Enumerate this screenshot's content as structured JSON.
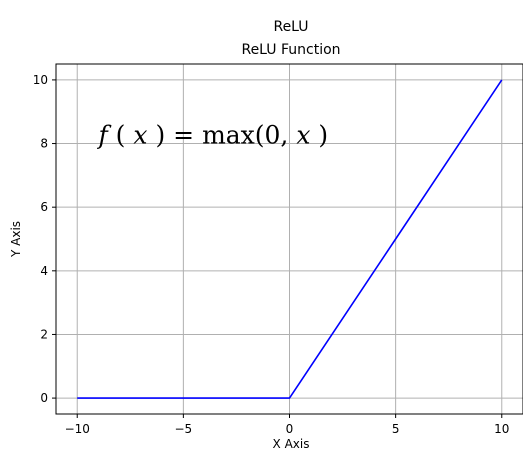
{
  "chart_data": {
    "type": "line",
    "suptitle": "ReLU",
    "title": "ReLU Function",
    "xlabel": "X Axis",
    "ylabel": "Y Axis",
    "xlim": [
      -11,
      11
    ],
    "ylim": [
      -0.5,
      10.5
    ],
    "xticks": [
      -10,
      -5,
      0,
      5,
      10
    ],
    "xtick_labels": [
      "−10",
      "−5",
      "0",
      "5",
      "10"
    ],
    "yticks": [
      0,
      2,
      4,
      6,
      8,
      10
    ],
    "ytick_labels": [
      "0",
      "2",
      "4",
      "6",
      "8",
      "10"
    ],
    "grid": true,
    "series": [
      {
        "color": "#0000ff",
        "x": [
          -10,
          -5,
          0,
          5,
          10
        ],
        "y": [
          0,
          0,
          0,
          5,
          10
        ]
      }
    ],
    "annotation": {
      "prefix": "f",
      "arg_open": "(",
      "arg": "x",
      "arg_close": ")",
      "equals": " = max(0, ",
      "var": "x",
      "close": ")",
      "x": -9,
      "y": 8
    }
  }
}
